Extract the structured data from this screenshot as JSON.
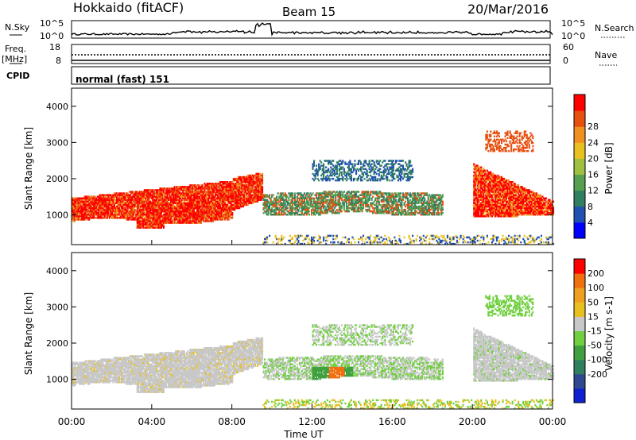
{
  "header": {
    "station": "Hokkaido (fitACF)",
    "beam": "Beam 15",
    "date": "20/Mar/2016"
  },
  "panels": {
    "nsky_label": "N.Sky",
    "nsky_tick_hi": "10^5",
    "nsky_tick_lo": "10^0",
    "nsearch_label": "N.Search",
    "freq_label_1": "Freq.",
    "freq_label_2": "[MHz]",
    "freq_tick_hi": "18",
    "freq_tick_lo": "8",
    "nave_tick_hi": "60",
    "nave_tick_lo": "0",
    "nave_label": "Nave",
    "cpid_label": "CPID",
    "cpid_value": "normal (fast) 151"
  },
  "chart_data": [
    {
      "type": "heatmap",
      "quantity": "Power",
      "ylabel": "Slant Range [km]",
      "ylim": [
        180,
        4500
      ],
      "yticks": [
        "1000",
        "2000",
        "3000",
        "4000"
      ],
      "colorbar_label": "Power [dB]",
      "colorbar_ticks": [
        "4",
        "8",
        "12",
        "16",
        "20",
        "24",
        "28"
      ],
      "colorbar_colors": [
        "#0000ff",
        "#2050b0",
        "#2f7f60",
        "#56a050",
        "#a0c040",
        "#e8c020",
        "#f09020",
        "#e85010",
        "#ff0000"
      ]
    },
    {
      "type": "heatmap",
      "quantity": "Velocity",
      "ylabel": "Slant Range [km]",
      "ylim": [
        180,
        4500
      ],
      "yticks": [
        "1000",
        "2000",
        "3000",
        "4000"
      ],
      "colorbar_label": "Velocity [m s-1]",
      "colorbar_ticks": [
        "200",
        "100",
        "50",
        "15",
        "-15",
        "-50",
        "-100",
        "-200"
      ],
      "colorbar_colors": [
        "#1020d0",
        "#304890",
        "#308060",
        "#40a040",
        "#70d040",
        "#c8c8c8",
        "#e8c020",
        "#f0a020",
        "#f07010",
        "#ff0000"
      ]
    }
  ],
  "time_axis": {
    "ticks": [
      "00:00",
      "04:00",
      "08:00",
      "12:00",
      "16:00",
      "20:00",
      "00:00"
    ],
    "label": "Time UT"
  }
}
